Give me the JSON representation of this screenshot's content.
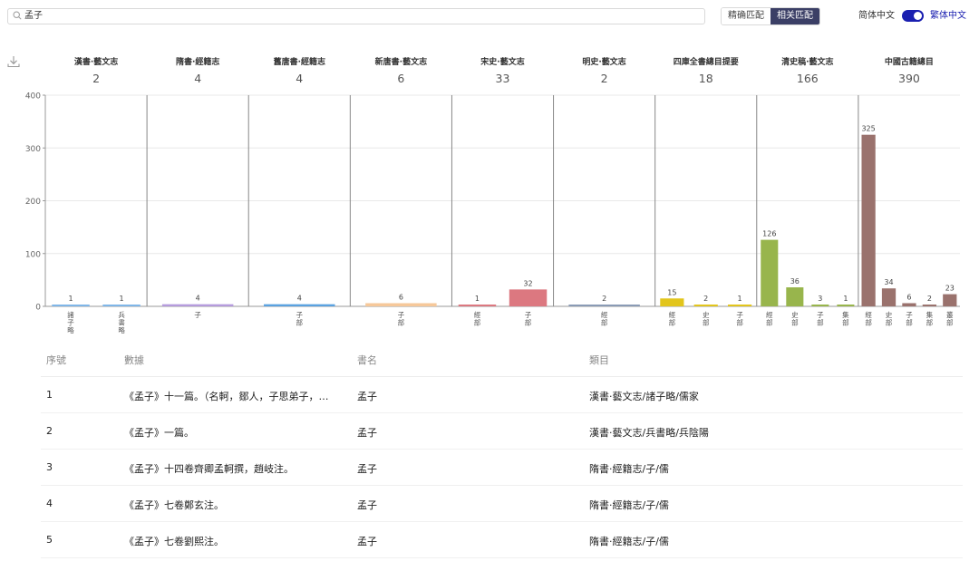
{
  "search": {
    "value": "孟子",
    "icon": "search-icon"
  },
  "match_toggle": {
    "exact_label": "精确匹配",
    "related_label": "相关匹配",
    "selected": "相关匹配"
  },
  "language": {
    "simplified_label": "简体中文",
    "traditional_label": "繁体中文",
    "selected": "繁体中文"
  },
  "download_icon": "download-icon",
  "chart_data": {
    "type": "bar",
    "ylim": [
      0,
      400
    ],
    "yticks": [
      0,
      100,
      200,
      300,
      400
    ],
    "groups": [
      {
        "name": "漢書·藝文志",
        "total": "2",
        "color": "#7fb6e8",
        "bars": [
          {
            "label": "諸子略",
            "value": 1
          },
          {
            "label": "兵書略",
            "value": 1
          }
        ]
      },
      {
        "name": "隋書·經籍志",
        "total": "4",
        "color": "#b59bdc",
        "bars": [
          {
            "label": "子",
            "value": 4
          }
        ]
      },
      {
        "name": "舊唐書·經籍志",
        "total": "4",
        "color": "#5aa2e0",
        "bars": [
          {
            "label": "子部",
            "value": 4
          }
        ]
      },
      {
        "name": "新唐書·藝文志",
        "total": "6",
        "color": "#f6c89a",
        "bars": [
          {
            "label": "子部",
            "value": 6
          }
        ]
      },
      {
        "name": "宋史·藝文志",
        "total": "33",
        "color": "#dc7880",
        "bars": [
          {
            "label": "經部",
            "value": 1
          },
          {
            "label": "子部",
            "value": 32
          }
        ]
      },
      {
        "name": "明史·藝文志",
        "total": "2",
        "color": "#8a9bb5",
        "bars": [
          {
            "label": "經部",
            "value": 2
          }
        ]
      },
      {
        "name": "四庫全書總目提要",
        "total": "18",
        "color": "#e2c51c",
        "bars": [
          {
            "label": "經部",
            "value": 15
          },
          {
            "label": "史部",
            "value": 2
          },
          {
            "label": "子部",
            "value": 1
          }
        ]
      },
      {
        "name": "清史稿·藝文志",
        "total": "166",
        "color": "#98b54c",
        "bars": [
          {
            "label": "經部",
            "value": 126
          },
          {
            "label": "史部",
            "value": 36
          },
          {
            "label": "子部",
            "value": 3
          },
          {
            "label": "集部",
            "value": 1
          }
        ]
      },
      {
        "name": "中國古籍總目",
        "total": "390",
        "color": "#9a726d",
        "bars": [
          {
            "label": "經部",
            "value": 325
          },
          {
            "label": "史部",
            "value": 34
          },
          {
            "label": "子部",
            "value": 6
          },
          {
            "label": "集部",
            "value": 2
          },
          {
            "label": "叢部",
            "value": 23
          }
        ]
      }
    ]
  },
  "table": {
    "headers": {
      "index": "序號",
      "data": "數據",
      "title": "書名",
      "category": "類目"
    },
    "rows": [
      {
        "index": "1",
        "data": "《孟子》十一篇。（名軻，鄒人，子思弟子，…",
        "title": "孟子",
        "category": "漢書·藝文志/諸子略/儒家"
      },
      {
        "index": "2",
        "data": "《孟子》一篇。",
        "title": "孟子",
        "category": "漢書·藝文志/兵書略/兵陰陽"
      },
      {
        "index": "3",
        "data": "《孟子》十四卷齊卿孟軻撰，趙岐注。",
        "title": "孟子",
        "category": "隋書·經籍志/子/儒"
      },
      {
        "index": "4",
        "data": "《孟子》七卷鄭玄注。",
        "title": "孟子",
        "category": "隋書·經籍志/子/儒"
      },
      {
        "index": "5",
        "data": "《孟子》七卷劉熙注。",
        "title": "孟子",
        "category": "隋書·經籍志/子/儒"
      }
    ]
  }
}
